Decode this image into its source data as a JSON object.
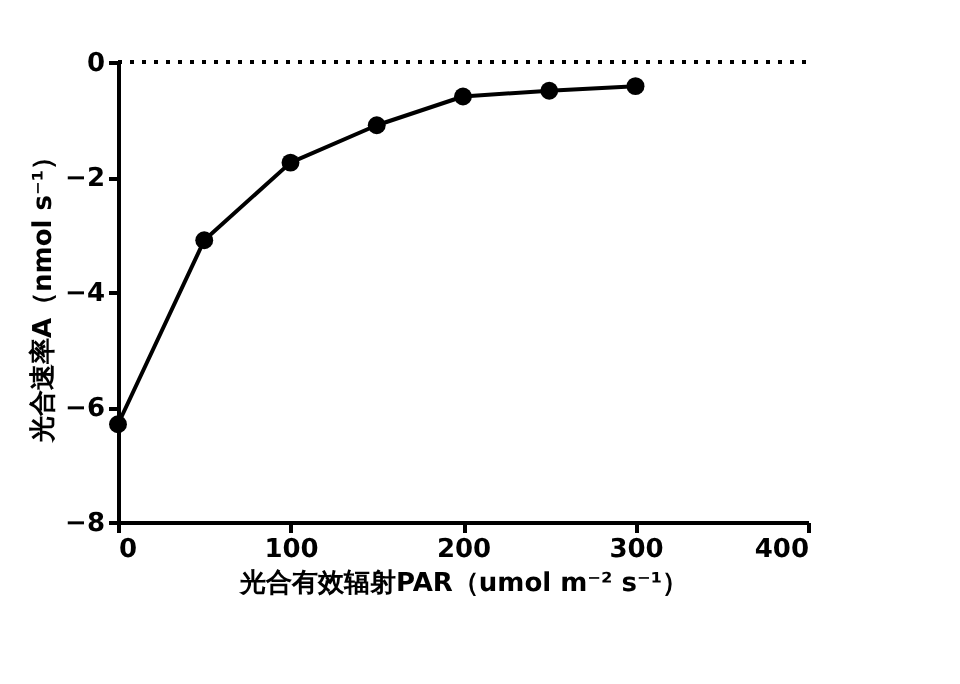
{
  "chart_data": {
    "type": "line",
    "xlabel": "光合有效辐射PAR（umol m⁻² s⁻¹）",
    "ylabel": "光合速率A（nmol s⁻¹）",
    "x": [
      0,
      50,
      100,
      150,
      200,
      250,
      300
    ],
    "series": [
      {
        "color": "#000000",
        "values": [
          -6.3,
          -3.1,
          -1.75,
          -1.1,
          -0.6,
          -0.5,
          -0.42
        ]
      }
    ],
    "xlim": [
      0,
      400
    ],
    "xticks": [
      0,
      100,
      200,
      300,
      400
    ],
    "ylim": [
      -8,
      0
    ],
    "yticks": [
      -8,
      -6,
      -4,
      -2,
      0
    ],
    "ref_lines": [
      {
        "axis": "y",
        "value": 0,
        "color": "#000000",
        "line_style": "dotted"
      }
    ],
    "marker": "circle",
    "line_style": "solid",
    "grid": false
  }
}
